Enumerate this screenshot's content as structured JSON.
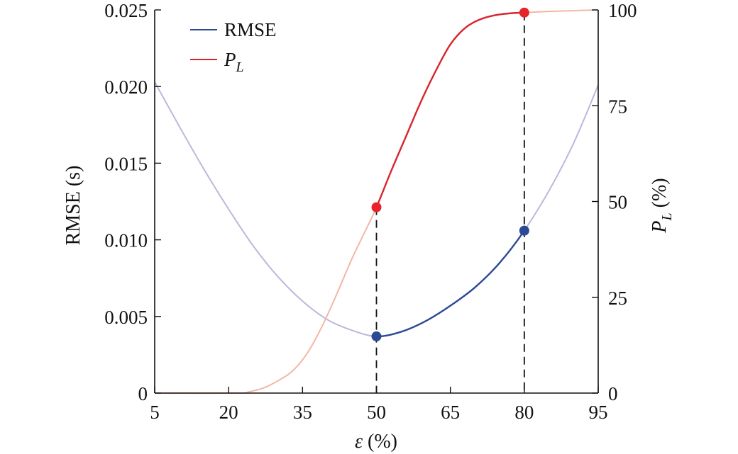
{
  "chart_data": {
    "type": "line",
    "x_axis": {
      "label_symbol": "ε",
      "label_unit": " (%)",
      "range": [
        5,
        95
      ],
      "ticks": [
        5,
        20,
        35,
        50,
        65,
        80,
        95
      ]
    },
    "y_axis_left": {
      "label": "RMSE (s)",
      "range": [
        0,
        0.025
      ],
      "ticks": [
        0,
        0.005,
        0.01,
        0.015,
        0.02,
        0.025
      ],
      "tick_labels": [
        "0",
        "0.005",
        "0.010",
        "0.015",
        "0.020",
        "0.025"
      ]
    },
    "y_axis_right": {
      "label_symbol": "P",
      "label_subscript": "L",
      "label_unit": " (%)",
      "range": [
        0,
        100
      ],
      "ticks": [
        0,
        25,
        50,
        75,
        100
      ],
      "tick_labels": [
        "0",
        "25",
        "50",
        "75",
        "100"
      ]
    },
    "legend": {
      "position": "top-left",
      "entries": [
        {
          "label": "RMSE",
          "color": "#2b4a94"
        },
        {
          "label_symbol": "P",
          "label_subscript": "L",
          "color": "#d7262d"
        }
      ]
    },
    "grid": false,
    "highlight_range": [
      50,
      80
    ],
    "series": [
      {
        "axis": "left",
        "color": "#2b4a94",
        "faded_color": "#b9b9dd",
        "x": [
          5,
          10,
          15,
          20,
          25,
          30,
          35,
          40,
          45,
          50,
          55,
          60,
          65,
          70,
          75,
          80,
          85,
          90,
          95
        ],
        "y": [
          0.0203,
          0.0174,
          0.0146,
          0.012,
          0.0096,
          0.0076,
          0.006,
          0.0048,
          0.0041,
          0.0037,
          0.004,
          0.0047,
          0.0057,
          0.0069,
          0.0085,
          0.0106,
          0.0132,
          0.0163,
          0.0201
        ]
      },
      {
        "axis": "right",
        "color": "#d7262d",
        "faded_color": "#f3b7a4",
        "x": [
          5,
          22,
          24,
          27,
          30,
          33,
          36,
          39,
          42,
          45,
          48,
          50,
          53,
          56,
          59,
          62,
          65,
          68,
          71,
          74,
          77,
          80,
          85,
          90,
          95
        ],
        "y": [
          0,
          0,
          0.3,
          1.3,
          3.2,
          5.8,
          10.5,
          17.5,
          26,
          35,
          43,
          48.5,
          58,
          67,
          76,
          84,
          91,
          95.3,
          97.5,
          98.6,
          99.1,
          99.3,
          99.6,
          99.8,
          100
        ]
      }
    ],
    "markers": [
      {
        "axis": "left",
        "x": 50,
        "y": 0.0037,
        "color": "#2b4a94"
      },
      {
        "axis": "left",
        "x": 80,
        "y": 0.0106,
        "color": "#2b4a94"
      },
      {
        "axis": "right",
        "x": 50,
        "y": 48.5,
        "color": "#e8242b"
      },
      {
        "axis": "right",
        "x": 80,
        "y": 99.3,
        "color": "#e8242b"
      }
    ]
  }
}
